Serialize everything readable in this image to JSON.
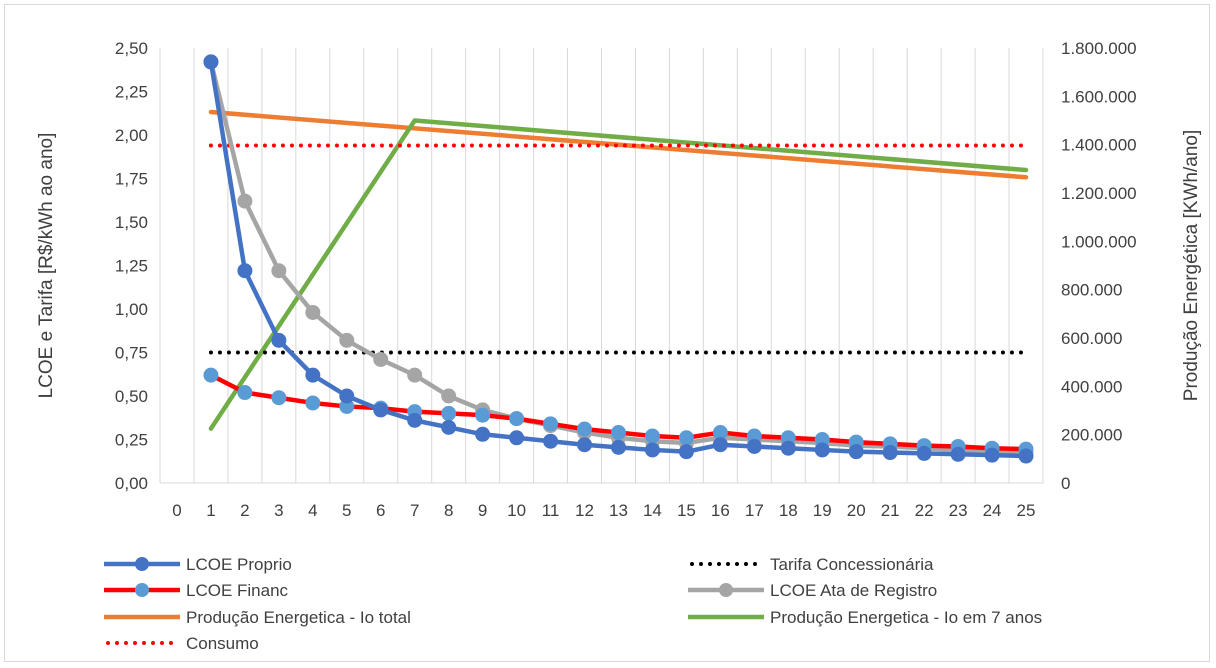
{
  "chart_data": {
    "type": "line",
    "title": "",
    "xlabel": "",
    "ylabel": "LCOE e Tarifa [R$/kWh ao ano]",
    "y2label": "Produção Energética [KWh/ano]",
    "x_categories": [
      "0",
      "1",
      "2",
      "3",
      "4",
      "5",
      "6",
      "7",
      "8",
      "9",
      "10",
      "11",
      "12",
      "13",
      "14",
      "15",
      "16",
      "17",
      "18",
      "19",
      "20",
      "21",
      "22",
      "23",
      "24",
      "25"
    ],
    "ylim": [
      0,
      2.5
    ],
    "y2lim": [
      0,
      1800000
    ],
    "y_ticks": [
      "0,00",
      "0,25",
      "0,50",
      "0,75",
      "1,00",
      "1,25",
      "1,50",
      "1,75",
      "2,00",
      "2,25",
      "2,50"
    ],
    "y2_ticks": [
      "0",
      "200.000",
      "400.000",
      "600.000",
      "800.000",
      "1.000.000",
      "1.200.000",
      "1.400.000",
      "1.600.000",
      "1.800.000"
    ],
    "grid": "vertical",
    "legend_position": "bottom",
    "series": [
      {
        "name": "LCOE Proprio",
        "axis": "left",
        "color": "#4472c4",
        "style": "line-markers",
        "x": [
          1,
          2,
          3,
          4,
          5,
          6,
          7,
          8,
          9,
          10,
          11,
          12,
          13,
          14,
          15,
          16,
          17,
          18,
          19,
          20,
          21,
          22,
          23,
          24,
          25
        ],
        "values": [
          2.42,
          1.22,
          0.82,
          0.62,
          0.5,
          0.42,
          0.36,
          0.32,
          0.28,
          0.26,
          0.24,
          0.22,
          0.205,
          0.19,
          0.18,
          0.22,
          0.21,
          0.2,
          0.19,
          0.18,
          0.175,
          0.17,
          0.165,
          0.16,
          0.155
        ]
      },
      {
        "name": "Tarifa Concessionária",
        "axis": "left",
        "color": "#000000",
        "style": "dotted",
        "x": [
          1,
          25
        ],
        "values": [
          0.75,
          0.75
        ]
      },
      {
        "name": "LCOE Financ",
        "axis": "left",
        "color": "#ff0000",
        "marker_color": "#5b9bd5",
        "style": "line-markers",
        "x": [
          1,
          2,
          3,
          4,
          5,
          6,
          7,
          8,
          9,
          10,
          11,
          12,
          13,
          14,
          15,
          16,
          17,
          18,
          19,
          20,
          21,
          22,
          23,
          24,
          25
        ],
        "values": [
          0.62,
          0.52,
          0.49,
          0.46,
          0.44,
          0.43,
          0.41,
          0.4,
          0.39,
          0.37,
          0.34,
          0.31,
          0.29,
          0.27,
          0.26,
          0.29,
          0.27,
          0.26,
          0.25,
          0.235,
          0.225,
          0.215,
          0.21,
          0.2,
          0.195
        ]
      },
      {
        "name": "LCOE Ata de Registro",
        "axis": "left",
        "color": "#a5a5a5",
        "style": "line-markers",
        "x": [
          1,
          2,
          3,
          4,
          5,
          6,
          7,
          8,
          9,
          10,
          11,
          12,
          13,
          14,
          15,
          16,
          17,
          18,
          19,
          20,
          21,
          22,
          23,
          24,
          25
        ],
        "values": [
          2.42,
          1.62,
          1.22,
          0.98,
          0.82,
          0.71,
          0.62,
          0.5,
          0.42,
          0.37,
          0.33,
          0.29,
          0.26,
          0.24,
          0.23,
          0.26,
          0.25,
          0.24,
          0.23,
          0.215,
          0.21,
          0.2,
          0.19,
          0.185,
          0.18
        ]
      },
      {
        "name": "Produção Energetica - Io total",
        "axis": "right",
        "color": "#ed7d31",
        "style": "line",
        "x": [
          1,
          25
        ],
        "values": [
          1535000,
          1265000
        ]
      },
      {
        "name": "Produção Energetica - Io em 7 anos",
        "axis": "right",
        "color": "#70ad47",
        "style": "line",
        "x": [
          1,
          7,
          25
        ],
        "values": [
          225000,
          1500000,
          1295000
        ]
      },
      {
        "name": "Consumo",
        "axis": "left",
        "color": "#ff0000",
        "style": "dotted",
        "x": [
          1,
          25
        ],
        "values": [
          1.94,
          1.94
        ]
      }
    ]
  }
}
